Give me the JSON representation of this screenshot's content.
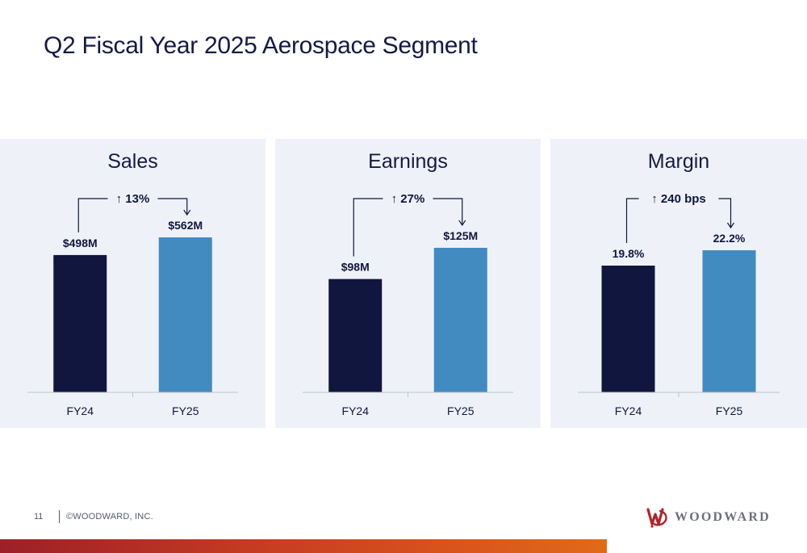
{
  "page": {
    "title": "Q2 Fiscal Year 2025 Aerospace Segment",
    "page_number": "11",
    "copyright": "©WOODWARD, INC.",
    "brand": "WOODWARD"
  },
  "colors": {
    "fy24": "#10163e",
    "fy25": "#418bc1",
    "panel_bg": "#eef2f8",
    "brand_red": "#b0242a"
  },
  "chart_data": [
    {
      "type": "bar",
      "title": "Sales",
      "categories": [
        "FY24",
        "FY25"
      ],
      "values": [
        498,
        562
      ],
      "value_labels": [
        "$498M",
        "$562M"
      ],
      "change_label": "13%",
      "change_direction": "up",
      "ylim": [
        0,
        650
      ]
    },
    {
      "type": "bar",
      "title": "Earnings",
      "categories": [
        "FY24",
        "FY25"
      ],
      "values": [
        98,
        125
      ],
      "value_labels": [
        "$98M",
        "$125M"
      ],
      "change_label": "27%",
      "change_direction": "up",
      "ylim": [
        0,
        155
      ]
    },
    {
      "type": "bar",
      "title": "Margin",
      "categories": [
        "FY24",
        "FY25"
      ],
      "values": [
        19.8,
        22.2
      ],
      "value_labels": [
        "19.8%",
        "22.2%"
      ],
      "change_label": "240 bps",
      "change_direction": "up",
      "ylim": [
        0,
        28
      ]
    }
  ]
}
